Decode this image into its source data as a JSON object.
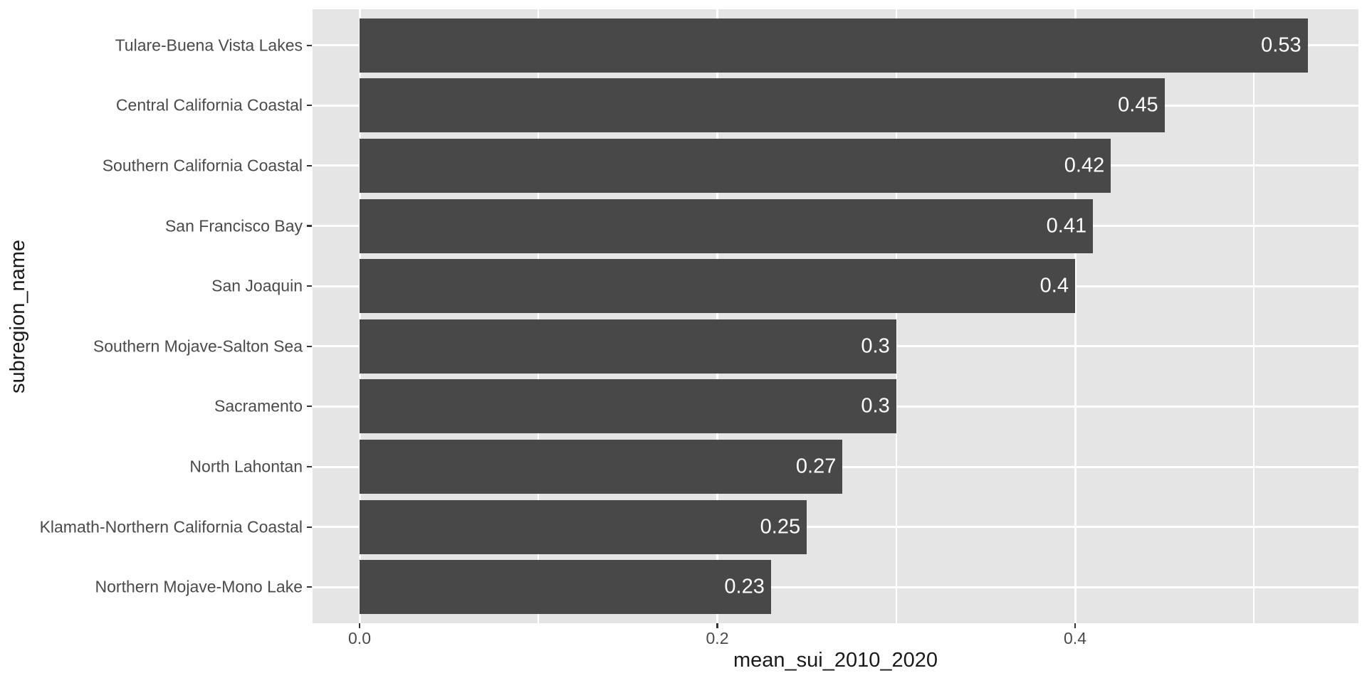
{
  "chart_data": {
    "type": "bar",
    "orientation": "horizontal",
    "title": "",
    "xlabel": "mean_sui_2010_2020",
    "ylabel": "subregion_name",
    "categories": [
      "Tulare-Buena Vista Lakes",
      "Central California Coastal",
      "Southern California Coastal",
      "San Francisco Bay",
      "San Joaquin",
      "Southern Mojave-Salton Sea",
      "Sacramento",
      "North Lahontan",
      "Klamath-Northern California Coastal",
      "Northern Mojave-Mono Lake"
    ],
    "values": [
      0.53,
      0.45,
      0.42,
      0.41,
      0.4,
      0.3,
      0.3,
      0.27,
      0.25,
      0.23
    ],
    "bar_labels": [
      "0.53",
      "0.45",
      "0.42",
      "0.41",
      "0.4",
      "0.3",
      "0.3",
      "0.27",
      "0.25",
      "0.23"
    ],
    "x_ticks": [
      {
        "value": 0.0,
        "label": "0.0"
      },
      {
        "value": 0.2,
        "label": "0.2"
      },
      {
        "value": 0.4,
        "label": "0.4"
      }
    ],
    "x_minor_ticks": [
      0.1,
      0.3,
      0.5
    ],
    "xlim": [
      -0.027,
      0.557
    ],
    "grid": "major-and-minor-vertical, major-horizontal",
    "legend": "none",
    "colors": {
      "bar_fill": "#484848",
      "panel_bg": "#E5E5E5",
      "grid": "#FFFFFF",
      "axis_text": "#4A4A4A",
      "axis_title": "#1A1A1A",
      "bar_label_text": "#FFFFFF",
      "tick_mark": "#333333",
      "plot_bg": "#FFFFFF"
    }
  }
}
